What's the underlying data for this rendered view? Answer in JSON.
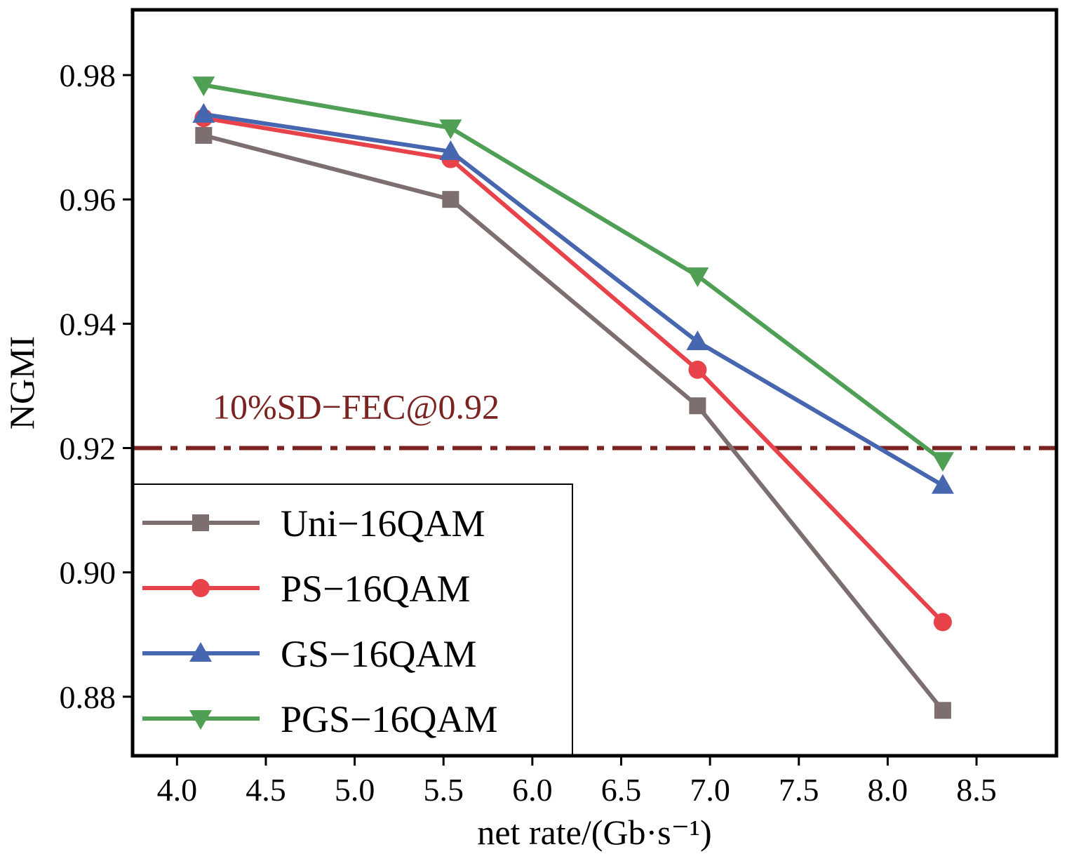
{
  "chart_data": {
    "type": "line",
    "xlabel": "net rate/(Gb·s⁻¹)",
    "ylabel": "NGMI",
    "xlim": [
      3.75,
      8.95
    ],
    "ylim": [
      0.8705,
      0.9905
    ],
    "xticks": [
      4.0,
      4.5,
      5.0,
      5.5,
      6.0,
      6.5,
      7.0,
      7.5,
      8.0,
      8.5
    ],
    "xtick_labels": [
      "4.0",
      "4.5",
      "5.0",
      "5.5",
      "6.0",
      "6.5",
      "7.0",
      "7.5",
      "8.0",
      "8.5"
    ],
    "yticks": [
      0.88,
      0.9,
      0.92,
      0.94,
      0.96,
      0.98
    ],
    "ytick_labels": [
      "0.88",
      "0.90",
      "0.92",
      "0.94",
      "0.96",
      "0.98"
    ],
    "x": [
      4.15,
      5.54,
      6.93,
      8.31
    ],
    "series": [
      {
        "name": "Uni−16QAM",
        "values": [
          0.9703,
          0.96,
          0.9268,
          0.8778
        ],
        "color": "#7d6f6f",
        "marker": "square"
      },
      {
        "name": "PS−16QAM",
        "values": [
          0.9731,
          0.9665,
          0.9326,
          0.892
        ],
        "color": "#e8434a",
        "marker": "circle"
      },
      {
        "name": "GS−16QAM",
        "values": [
          0.9737,
          0.9677,
          0.9371,
          0.914
        ],
        "color": "#4766b0",
        "marker": "triangle-up"
      },
      {
        "name": "PGS−16QAM",
        "values": [
          0.9784,
          0.9715,
          0.9477,
          0.918
        ],
        "color": "#4f9f55",
        "marker": "triangle-down"
      }
    ],
    "threshold": {
      "y": 0.92,
      "label": "10%SD−FEC@0.92",
      "color": "#7a2320",
      "style": "dash-dot"
    },
    "legend_position": "bottom-left",
    "grid": false
  }
}
